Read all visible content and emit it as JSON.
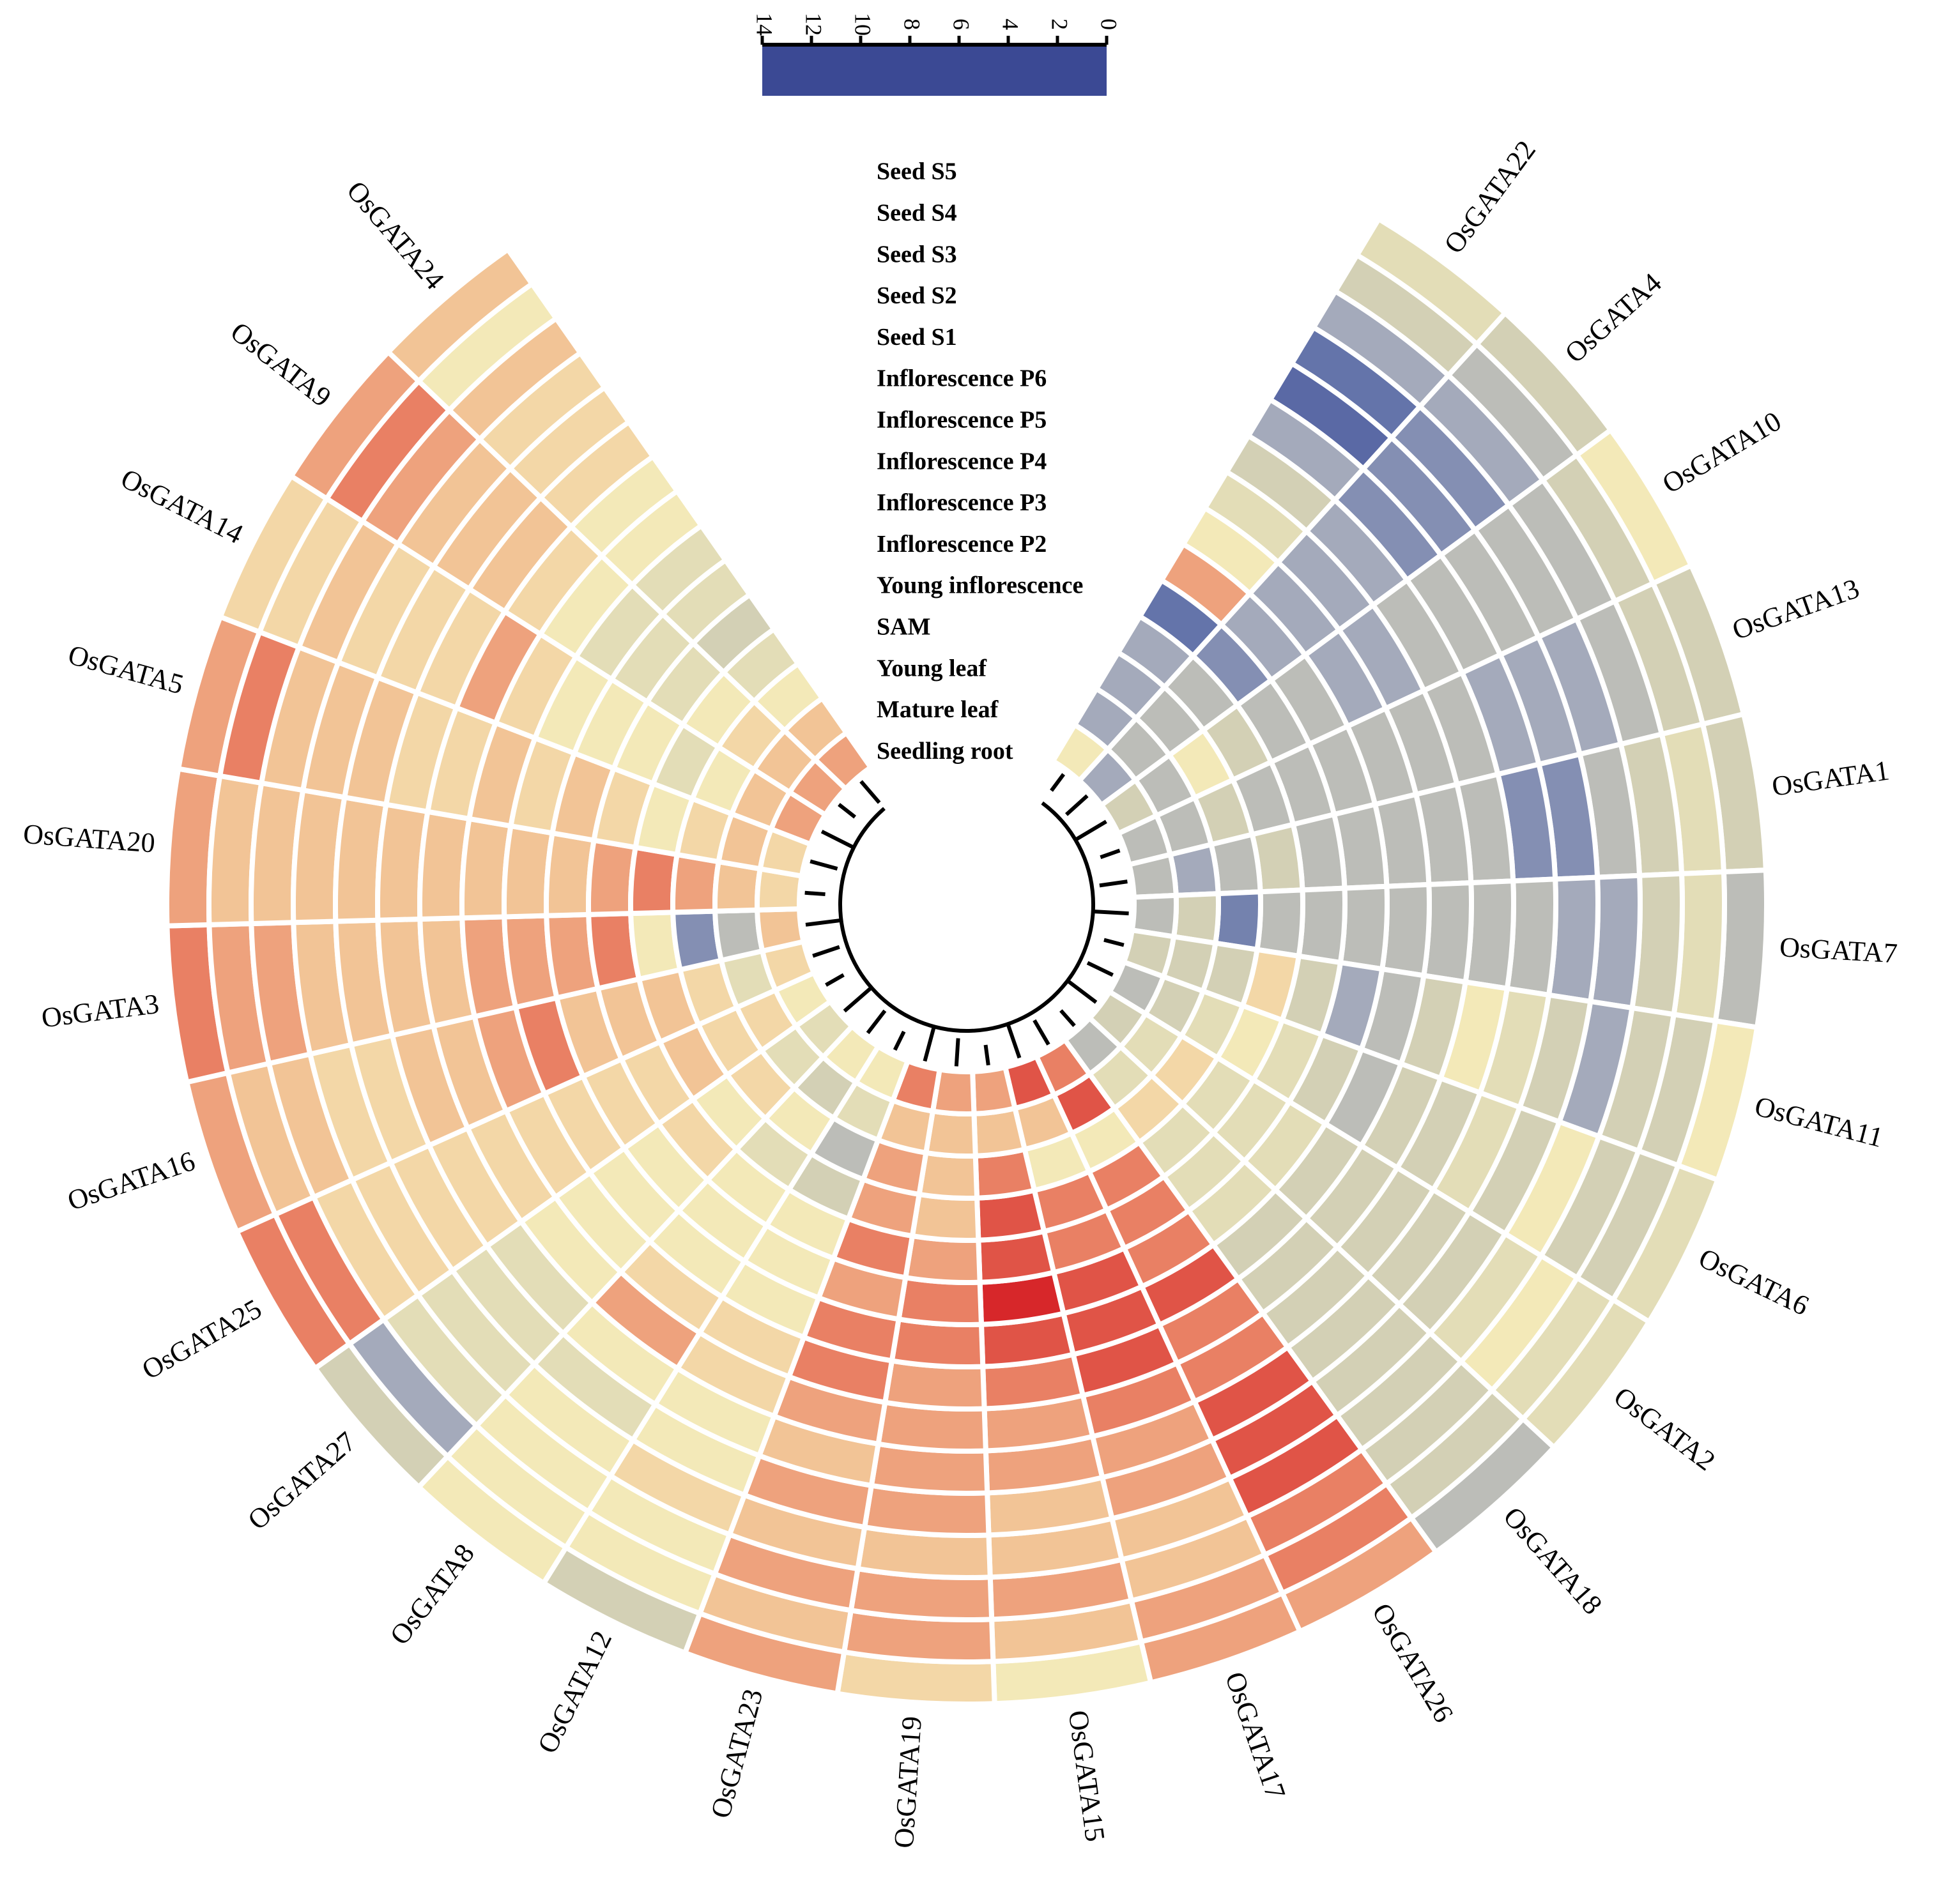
{
  "chart_data": {
    "type": "radial_heatmap",
    "categories": [
      "OsGATA22",
      "OsGATA4",
      "OsGATA10",
      "OsGATA13",
      "OsGATA1",
      "OsGATA7",
      "OsGATA11",
      "OsGATA6",
      "OsGATA2",
      "OsGATA18",
      "OsGATA26",
      "OsGATA17",
      "OsGATA15",
      "OsGATA19",
      "OsGATA23",
      "OsGATA12",
      "OsGATA8",
      "OsGATA27",
      "OsGATA25",
      "OsGATA16",
      "OsGATA3",
      "OsGATA20",
      "OsGATA5",
      "OsGATA14",
      "OsGATA9",
      "OsGATA24"
    ],
    "rows": [
      "Seed S5",
      "Seed S4",
      "Seed S3",
      "Seed S2",
      "Seed S1",
      "Inflorescence P6",
      "Inflorescence P5",
      "Inflorescence P4",
      "Inflorescence P3",
      "Inflorescence P2",
      "Young inflorescence",
      "SAM",
      "Young leaf",
      "Mature leaf",
      "Seedling root"
    ],
    "values": [
      [
        7,
        6,
        4,
        2,
        1.5,
        4,
        6,
        7,
        8,
        11,
        2,
        4,
        4,
        4,
        8
      ],
      [
        6,
        5,
        4,
        3,
        3,
        3,
        4,
        4,
        4,
        4,
        3,
        5,
        5,
        5,
        4
      ],
      [
        8,
        6,
        5,
        5,
        5,
        5,
        5,
        4,
        4,
        5,
        5,
        6,
        8,
        5,
        6
      ],
      [
        6,
        6,
        5,
        4,
        4,
        4,
        5,
        5,
        5,
        5,
        5,
        5,
        6,
        5,
        5
      ],
      [
        6,
        7,
        6,
        5,
        3,
        3,
        5,
        5,
        5,
        5,
        5,
        6,
        5,
        4,
        5
      ],
      [
        5,
        7,
        6,
        4,
        4,
        5,
        5,
        5,
        5,
        5,
        5,
        5,
        2.5,
        6,
        5
      ],
      [
        8,
        6,
        6,
        4,
        6,
        7,
        8,
        6,
        5,
        4,
        6,
        9,
        6,
        6,
        6
      ],
      [
        7,
        6,
        6,
        8,
        6,
        7,
        6,
        6,
        5,
        6,
        7,
        8,
        7,
        6,
        5
      ],
      [
        7,
        7,
        8,
        7,
        6,
        6,
        6,
        6,
        6,
        7,
        7,
        7,
        9,
        7,
        6
      ],
      [
        5,
        6,
        6,
        6,
        6,
        6,
        6,
        6,
        6,
        7,
        7,
        7,
        9,
        7,
        5
      ],
      [
        11,
        12,
        12,
        13,
        13,
        13,
        12,
        12,
        13,
        12,
        12,
        12,
        8,
        13,
        12
      ],
      [
        11,
        11,
        10,
        10,
        11,
        11,
        12,
        13,
        13,
        13,
        12,
        12,
        8,
        10,
        13
      ],
      [
        8,
        10,
        11,
        10,
        10,
        11,
        11,
        12,
        13,
        14,
        13,
        13,
        12,
        10,
        11
      ],
      [
        9,
        11,
        11,
        10,
        11,
        11,
        11,
        11,
        12,
        12,
        11,
        10,
        10,
        10,
        11
      ],
      [
        11,
        10,
        11,
        10,
        11,
        10,
        11,
        12,
        12,
        11,
        12,
        11,
        11,
        10,
        12
      ],
      [
        6,
        8,
        8,
        9,
        8,
        8,
        9,
        9,
        8,
        8,
        8,
        6,
        5,
        7,
        8
      ],
      [
        8,
        8,
        8,
        8,
        7,
        8,
        11,
        9,
        8,
        8,
        8,
        7,
        8,
        6,
        8
      ],
      [
        6,
        4,
        7,
        7,
        7,
        7,
        8,
        8,
        8,
        8,
        9,
        8,
        9,
        7,
        7
      ],
      [
        12,
        12,
        9,
        9,
        9,
        9,
        9,
        9,
        9,
        9,
        9,
        10,
        9,
        9,
        8
      ],
      [
        11,
        10,
        10,
        9,
        9,
        10,
        10,
        11,
        12,
        10,
        10,
        10,
        9,
        7,
        9
      ],
      [
        12,
        11,
        11,
        10,
        10,
        10,
        10,
        11,
        11,
        11,
        12,
        8,
        3,
        5,
        10
      ],
      [
        11,
        10,
        10,
        10,
        10,
        10,
        10,
        10,
        10,
        10,
        11,
        12,
        11,
        10,
        9
      ],
      [
        11,
        12,
        10,
        10,
        10,
        9,
        9,
        10,
        9,
        10,
        9,
        8,
        9,
        10,
        9
      ],
      [
        9,
        9,
        10,
        9,
        9,
        9,
        11,
        9,
        8,
        8,
        8,
        7,
        8,
        10,
        11
      ],
      [
        11,
        12,
        11,
        10,
        10,
        10,
        9,
        8,
        7,
        7,
        7,
        8,
        9,
        10,
        11
      ],
      [
        10,
        8,
        10,
        9,
        9,
        9,
        8,
        8,
        7,
        7,
        6,
        7,
        8,
        10,
        11
      ]
    ],
    "clim": [
      0,
      14
    ],
    "colorbar_ticks": [
      14,
      12,
      10,
      8,
      6,
      4,
      2,
      0
    ],
    "colorscale": [
      {
        "value": 0,
        "color": "#3b4994"
      },
      {
        "value": 2,
        "color": "#6474aa"
      },
      {
        "value": 4,
        "color": "#a4aabb"
      },
      {
        "value": 6,
        "color": "#d3d0b5"
      },
      {
        "value": 8,
        "color": "#f3e9b8"
      },
      {
        "value": 10,
        "color": "#f2c496"
      },
      {
        "value": 12,
        "color": "#e98064"
      },
      {
        "value": 14,
        "color": "#d7272a"
      }
    ]
  }
}
